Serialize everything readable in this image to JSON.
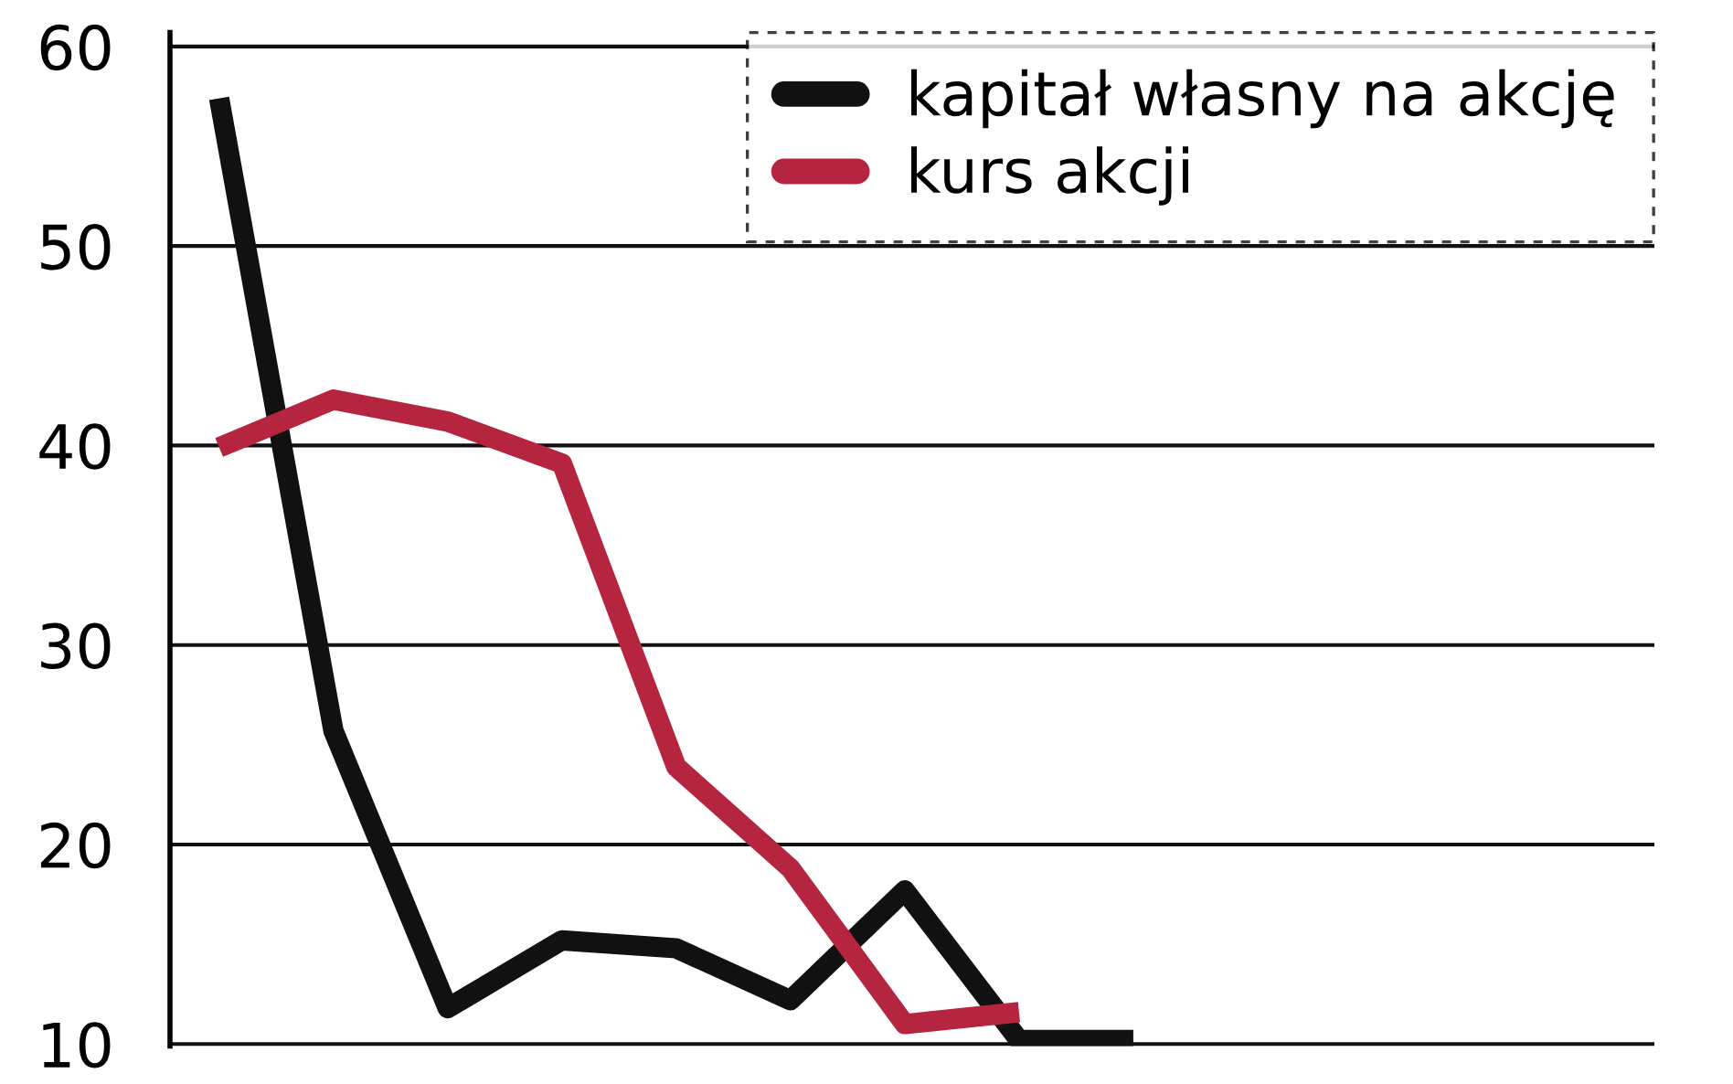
{
  "chart_data": {
    "type": "line",
    "categories": [
      null,
      null,
      null,
      null,
      null,
      null,
      null,
      null,
      null,
      null,
      null,
      null,
      null
    ],
    "series": [
      {
        "name": "kapitał własny na akcję",
        "color": "#111111",
        "values": [
          57.4,
          25.7,
          11.8,
          15.2,
          14.8,
          12.2,
          17.7,
          10.2,
          10.2,
          null,
          null,
          null,
          null
        ]
      },
      {
        "name": "kurs akcji",
        "color": "#b5253f",
        "values": [
          39.9,
          42.3,
          41.2,
          39.1,
          23.9,
          18.8,
          11.0,
          11.6,
          null,
          null,
          null,
          null,
          null
        ]
      }
    ],
    "ylim": [
      9.9,
      60.7
    ],
    "yticks": [
      10,
      20,
      30,
      40,
      50,
      60
    ],
    "grid": "y",
    "legend": "top right",
    "tick_labels": "y",
    "marker": "none",
    "line_style": "solid"
  }
}
